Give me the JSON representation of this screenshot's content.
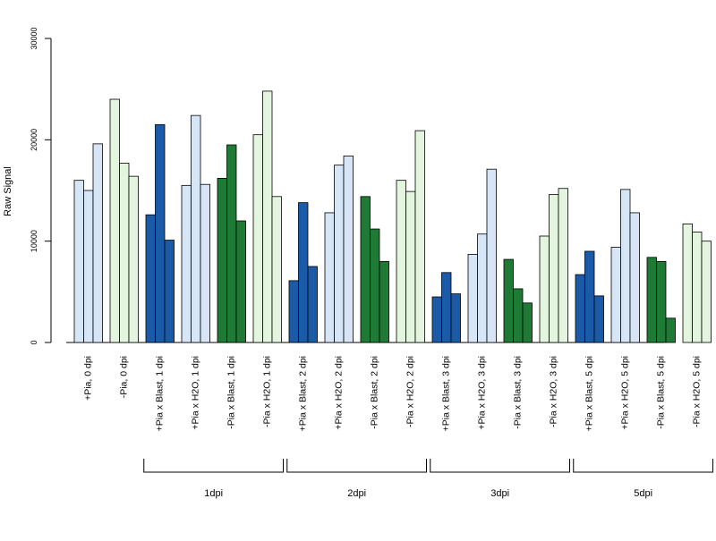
{
  "chart_data": {
    "type": "bar",
    "ylabel": "Raw Signal",
    "ylim": [
      0,
      30000
    ],
    "yticks": [
      0,
      10000,
      20000,
      30000
    ],
    "grid": false,
    "groups": [
      {
        "label": "+Pia, 0 dpi",
        "color": "#d6e6f7",
        "values": [
          16000,
          15000,
          19600
        ]
      },
      {
        "label": "-Pia, 0 dpi",
        "color": "#e3f5de",
        "values": [
          24000,
          17700,
          16400
        ]
      },
      {
        "label": "+Pia x Blast, 1 dpi",
        "color": "#1b5aa6",
        "values": [
          12600,
          21500,
          10100
        ]
      },
      {
        "label": "+Pia x H2O, 1 dpi",
        "color": "#d6e6f7",
        "values": [
          15500,
          22400,
          15600
        ]
      },
      {
        "label": "-Pia x Blast, 1 dpi",
        "color": "#1f7a35",
        "values": [
          16200,
          19500,
          12000
        ]
      },
      {
        "label": "-Pia x H2O, 1 dpi",
        "color": "#e3f5de",
        "values": [
          20500,
          24800,
          14400
        ]
      },
      {
        "label": "+Pia x Blast, 2 dpi",
        "color": "#1b5aa6",
        "values": [
          6100,
          13800,
          7500
        ]
      },
      {
        "label": "+Pia x H2O, 2 dpi",
        "color": "#d6e6f7",
        "values": [
          12800,
          17500,
          18400
        ]
      },
      {
        "label": "-Pia x Blast, 2 dpi",
        "color": "#1f7a35",
        "values": [
          14400,
          11200,
          8000
        ]
      },
      {
        "label": "-Pia x H2O, 2 dpi",
        "color": "#e3f5de",
        "values": [
          16000,
          14900,
          20900
        ]
      },
      {
        "label": "+Pia x Blast, 3 dpi",
        "color": "#1b5aa6",
        "values": [
          4500,
          6900,
          4800
        ]
      },
      {
        "label": "+Pia x H2O, 3 dpi",
        "color": "#d6e6f7",
        "values": [
          8700,
          10700,
          17100
        ]
      },
      {
        "label": "-Pia x Blast, 3 dpi",
        "color": "#1f7a35",
        "values": [
          8200,
          5300,
          3900
        ]
      },
      {
        "label": "-Pia x H2O, 3 dpi",
        "color": "#e3f5de",
        "values": [
          10500,
          14600,
          15200
        ]
      },
      {
        "label": "+Pia x Blast, 5 dpi",
        "color": "#1b5aa6",
        "values": [
          6700,
          9000,
          4600
        ]
      },
      {
        "label": "+Pia x H2O, 5 dpi",
        "color": "#d6e6f7",
        "values": [
          9400,
          15100,
          12800
        ]
      },
      {
        "label": "-Pia x Blast, 5 dpi",
        "color": "#1f7a35",
        "values": [
          8400,
          8000,
          2400
        ]
      },
      {
        "label": "-Pia x H2O, 5 dpi",
        "color": "#e3f5de",
        "values": [
          11700,
          10900,
          10000
        ]
      }
    ],
    "brackets": [
      {
        "label": "1dpi",
        "first_group": 2,
        "last_group": 5
      },
      {
        "label": "2dpi",
        "first_group": 6,
        "last_group": 9
      },
      {
        "label": "3dpi",
        "first_group": 10,
        "last_group": 13
      },
      {
        "label": "5dpi",
        "first_group": 14,
        "last_group": 17
      }
    ]
  }
}
